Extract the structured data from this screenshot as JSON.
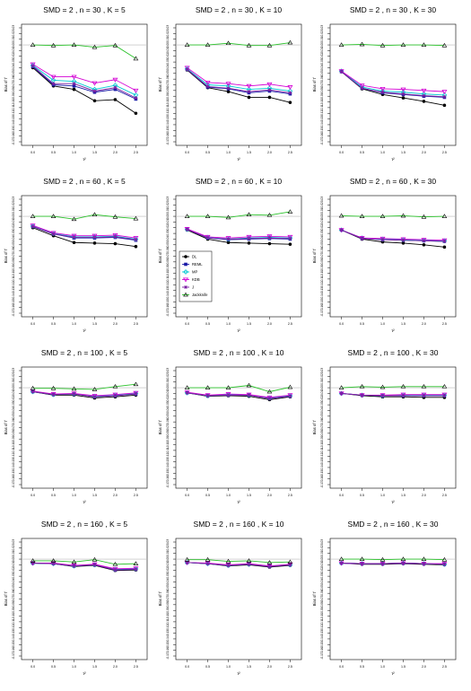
{
  "x_axis_label": "τ²",
  "y_axis_label": "Bias of τ̂",
  "x_ticks": [
    "0.0",
    "0.5",
    "1.0",
    "1.5",
    "2.0",
    "2.5"
  ],
  "y_ticks": [
    "0.03",
    "0.02",
    "0.01",
    "0.00",
    "-0.01",
    "-0.02",
    "-0.03",
    "-0.04",
    "-0.05",
    "-0.06",
    "-0.07",
    "-0.08",
    "-0.09",
    "-0.10",
    "-0.11",
    "-0.12",
    "-0.13",
    "-0.14",
    "-0.15",
    "-0.16",
    "-0.17"
  ],
  "legend": [
    {
      "name": "DL",
      "color": "#000000",
      "marker": "circle"
    },
    {
      "name": "REML",
      "color": "#1a1aa6",
      "marker": "square"
    },
    {
      "name": "MP",
      "color": "#00c8d2",
      "marker": "diamond"
    },
    {
      "name": "KDB",
      "color": "#d400d4",
      "marker": "triangle-down"
    },
    {
      "name": "J",
      "color": "#7a1fa2",
      "marker": "star"
    },
    {
      "name": "Jackknife",
      "color": "#2ac22a",
      "marker": "triangle-up"
    }
  ],
  "chart_data": [
    {
      "type": "line",
      "title": "SMD = 2 , n = 30 , K = 5",
      "x": [
        0,
        0.5,
        1,
        1.5,
        2,
        2.5
      ],
      "ylim": [
        -0.17,
        0.03
      ],
      "series": [
        {
          "name": "DL",
          "values": [
            -0.04,
            -0.072,
            -0.078,
            -0.098,
            -0.096,
            -0.12
          ]
        },
        {
          "name": "REML",
          "values": [
            -0.038,
            -0.07,
            -0.072,
            -0.083,
            -0.078,
            -0.095
          ]
        },
        {
          "name": "MP",
          "values": [
            -0.036,
            -0.062,
            -0.064,
            -0.078,
            -0.071,
            -0.088
          ]
        },
        {
          "name": "KDB",
          "values": [
            -0.034,
            -0.056,
            -0.056,
            -0.067,
            -0.061,
            -0.08
          ]
        },
        {
          "name": "J",
          "values": [
            -0.037,
            -0.068,
            -0.068,
            -0.081,
            -0.075,
            -0.093
          ]
        },
        {
          "name": "Jackknife",
          "values": [
            0.0,
            -0.001,
            0.0,
            -0.004,
            -0.001,
            -0.024
          ]
        }
      ]
    },
    {
      "type": "line",
      "title": "SMD = 2 , n = 30 , K = 10",
      "x": [
        0,
        0.5,
        1,
        1.5,
        2,
        2.5
      ],
      "ylim": [
        -0.17,
        0.03
      ],
      "series": [
        {
          "name": "DL",
          "values": [
            -0.044,
            -0.075,
            -0.082,
            -0.092,
            -0.092,
            -0.101
          ]
        },
        {
          "name": "REML",
          "values": [
            -0.043,
            -0.074,
            -0.077,
            -0.084,
            -0.081,
            -0.086
          ]
        },
        {
          "name": "MP",
          "values": [
            -0.042,
            -0.07,
            -0.072,
            -0.078,
            -0.076,
            -0.081
          ]
        },
        {
          "name": "KDB",
          "values": [
            -0.04,
            -0.066,
            -0.068,
            -0.072,
            -0.069,
            -0.074
          ]
        },
        {
          "name": "J",
          "values": [
            -0.043,
            -0.073,
            -0.076,
            -0.082,
            -0.079,
            -0.084
          ]
        },
        {
          "name": "Jackknife",
          "values": [
            0.0,
            0.0,
            0.003,
            -0.001,
            -0.001,
            0.004
          ]
        }
      ]
    },
    {
      "type": "line",
      "title": "SMD = 2 , n = 30 , K = 30",
      "x": [
        0,
        0.5,
        1,
        1.5,
        2,
        2.5
      ],
      "ylim": [
        -0.17,
        0.03
      ],
      "series": [
        {
          "name": "DL",
          "values": [
            -0.047,
            -0.077,
            -0.087,
            -0.093,
            -0.099,
            -0.106
          ]
        },
        {
          "name": "REML",
          "values": [
            -0.047,
            -0.076,
            -0.084,
            -0.087,
            -0.09,
            -0.092
          ]
        },
        {
          "name": "MP",
          "values": [
            -0.046,
            -0.074,
            -0.081,
            -0.083,
            -0.086,
            -0.088
          ]
        },
        {
          "name": "KDB",
          "values": [
            -0.046,
            -0.071,
            -0.077,
            -0.078,
            -0.08,
            -0.082
          ]
        },
        {
          "name": "J",
          "values": [
            -0.047,
            -0.076,
            -0.083,
            -0.086,
            -0.089,
            -0.091
          ]
        },
        {
          "name": "Jackknife",
          "values": [
            0.0,
            0.001,
            -0.001,
            0.0,
            0.0,
            -0.001
          ]
        }
      ]
    },
    {
      "type": "line",
      "title": "SMD = 2 , n = 60 , K = 5",
      "x": [
        0,
        0.5,
        1,
        1.5,
        2,
        2.5
      ],
      "ylim": [
        -0.17,
        0.03
      ],
      "series": [
        {
          "name": "DL",
          "values": [
            -0.02,
            -0.034,
            -0.046,
            -0.047,
            -0.048,
            -0.053
          ]
        },
        {
          "name": "REML",
          "values": [
            -0.018,
            -0.031,
            -0.038,
            -0.038,
            -0.037,
            -0.042
          ]
        },
        {
          "name": "MP",
          "values": [
            -0.017,
            -0.03,
            -0.036,
            -0.036,
            -0.035,
            -0.04
          ]
        },
        {
          "name": "KDB",
          "values": [
            -0.016,
            -0.029,
            -0.034,
            -0.034,
            -0.033,
            -0.038
          ]
        },
        {
          "name": "J",
          "values": [
            -0.018,
            -0.031,
            -0.037,
            -0.037,
            -0.036,
            -0.041
          ]
        },
        {
          "name": "Jackknife",
          "values": [
            0.0,
            0.0,
            -0.005,
            0.003,
            -0.001,
            -0.004
          ]
        }
      ]
    },
    {
      "type": "line",
      "title": "SMD = 2 , n = 60 , K = 10",
      "x": [
        0,
        0.5,
        1,
        1.5,
        2,
        2.5
      ],
      "ylim": [
        -0.17,
        0.03
      ],
      "series": [
        {
          "name": "DL",
          "values": [
            -0.024,
            -0.04,
            -0.046,
            -0.047,
            -0.048,
            -0.049
          ]
        },
        {
          "name": "REML",
          "values": [
            -0.023,
            -0.038,
            -0.041,
            -0.04,
            -0.039,
            -0.04
          ]
        },
        {
          "name": "MP",
          "values": [
            -0.023,
            -0.037,
            -0.04,
            -0.038,
            -0.037,
            -0.038
          ]
        },
        {
          "name": "KDB",
          "values": [
            -0.022,
            -0.036,
            -0.038,
            -0.036,
            -0.035,
            -0.036
          ]
        },
        {
          "name": "J",
          "values": [
            -0.023,
            -0.038,
            -0.04,
            -0.039,
            -0.038,
            -0.039
          ]
        },
        {
          "name": "Jackknife",
          "values": [
            0.0,
            0.0,
            -0.002,
            0.003,
            0.002,
            0.008
          ]
        }
      ]
    },
    {
      "type": "line",
      "title": "SMD = 2 , n = 60 , K = 30",
      "x": [
        0,
        0.5,
        1,
        1.5,
        2,
        2.5
      ],
      "ylim": [
        -0.17,
        0.03
      ],
      "series": [
        {
          "name": "DL",
          "values": [
            -0.024,
            -0.04,
            -0.045,
            -0.047,
            -0.05,
            -0.054
          ]
        },
        {
          "name": "REML",
          "values": [
            -0.024,
            -0.039,
            -0.041,
            -0.042,
            -0.043,
            -0.044
          ]
        },
        {
          "name": "MP",
          "values": [
            -0.024,
            -0.038,
            -0.04,
            -0.041,
            -0.042,
            -0.043
          ]
        },
        {
          "name": "KDB",
          "values": [
            -0.024,
            -0.038,
            -0.039,
            -0.04,
            -0.041,
            -0.042
          ]
        },
        {
          "name": "J",
          "values": [
            -0.024,
            -0.039,
            -0.041,
            -0.042,
            -0.043,
            -0.044
          ]
        },
        {
          "name": "Jackknife",
          "values": [
            0.001,
            0.0,
            0.0,
            0.001,
            -0.001,
            0.0
          ]
        }
      ]
    },
    {
      "type": "line",
      "title": "SMD = 2 , n = 100 , K = 5",
      "x": [
        0,
        0.5,
        1,
        1.5,
        2,
        2.5
      ],
      "ylim": [
        -0.17,
        0.03
      ],
      "series": [
        {
          "name": "DL",
          "values": [
            -0.007,
            -0.013,
            -0.013,
            -0.018,
            -0.016,
            -0.013
          ]
        },
        {
          "name": "REML",
          "values": [
            -0.007,
            -0.012,
            -0.011,
            -0.016,
            -0.014,
            -0.011
          ]
        },
        {
          "name": "MP",
          "values": [
            -0.007,
            -0.012,
            -0.011,
            -0.015,
            -0.013,
            -0.01
          ]
        },
        {
          "name": "KDB",
          "values": [
            -0.006,
            -0.011,
            -0.01,
            -0.014,
            -0.012,
            -0.009
          ]
        },
        {
          "name": "J",
          "values": [
            -0.007,
            -0.012,
            -0.011,
            -0.016,
            -0.014,
            -0.011
          ]
        },
        {
          "name": "Jackknife",
          "values": [
            -0.001,
            -0.001,
            -0.002,
            -0.003,
            0.002,
            0.006
          ]
        }
      ]
    },
    {
      "type": "line",
      "title": "SMD = 2 , n = 100 , K = 10",
      "x": [
        0,
        0.5,
        1,
        1.5,
        2,
        2.5
      ],
      "ylim": [
        -0.17,
        0.03
      ],
      "series": [
        {
          "name": "DL",
          "values": [
            -0.009,
            -0.015,
            -0.014,
            -0.015,
            -0.021,
            -0.016
          ]
        },
        {
          "name": "REML",
          "values": [
            -0.009,
            -0.014,
            -0.013,
            -0.013,
            -0.019,
            -0.015
          ]
        },
        {
          "name": "MP",
          "values": [
            -0.009,
            -0.014,
            -0.012,
            -0.013,
            -0.018,
            -0.014
          ]
        },
        {
          "name": "KDB",
          "values": [
            -0.008,
            -0.013,
            -0.011,
            -0.012,
            -0.017,
            -0.013
          ]
        },
        {
          "name": "J",
          "values": [
            -0.009,
            -0.014,
            -0.013,
            -0.013,
            -0.019,
            -0.015
          ]
        },
        {
          "name": "Jackknife",
          "values": [
            0.0,
            0.0,
            0.0,
            0.004,
            -0.007,
            0.001
          ]
        }
      ]
    },
    {
      "type": "line",
      "title": "SMD = 2 , n = 100 , K = 30",
      "x": [
        0,
        0.5,
        1,
        1.5,
        2,
        2.5
      ],
      "ylim": [
        -0.17,
        0.03
      ],
      "series": [
        {
          "name": "DL",
          "values": [
            -0.01,
            -0.014,
            -0.016,
            -0.016,
            -0.017,
            -0.017
          ]
        },
        {
          "name": "REML",
          "values": [
            -0.01,
            -0.013,
            -0.014,
            -0.014,
            -0.014,
            -0.014
          ]
        },
        {
          "name": "MP",
          "values": [
            -0.01,
            -0.013,
            -0.014,
            -0.013,
            -0.013,
            -0.013
          ]
        },
        {
          "name": "KDB",
          "values": [
            -0.01,
            -0.013,
            -0.013,
            -0.012,
            -0.012,
            -0.012
          ]
        },
        {
          "name": "J",
          "values": [
            -0.01,
            -0.013,
            -0.014,
            -0.014,
            -0.014,
            -0.014
          ]
        },
        {
          "name": "Jackknife",
          "values": [
            0.0,
            0.002,
            0.001,
            0.002,
            0.002,
            0.002
          ]
        }
      ]
    },
    {
      "type": "line",
      "title": "SMD = 2 , n = 160 , K = 5",
      "x": [
        0,
        0.5,
        1,
        1.5,
        2,
        2.5
      ],
      "ylim": [
        -0.17,
        0.03
      ],
      "series": [
        {
          "name": "DL",
          "values": [
            -0.007,
            -0.008,
            -0.013,
            -0.011,
            -0.02,
            -0.019
          ]
        },
        {
          "name": "REML",
          "values": [
            -0.007,
            -0.008,
            -0.012,
            -0.01,
            -0.019,
            -0.018
          ]
        },
        {
          "name": "MP",
          "values": [
            -0.007,
            -0.008,
            -0.012,
            -0.01,
            -0.018,
            -0.017
          ]
        },
        {
          "name": "KDB",
          "values": [
            -0.007,
            -0.007,
            -0.011,
            -0.009,
            -0.017,
            -0.016
          ]
        },
        {
          "name": "J",
          "values": [
            -0.007,
            -0.008,
            -0.012,
            -0.01,
            -0.019,
            -0.018
          ]
        },
        {
          "name": "Jackknife",
          "values": [
            -0.003,
            -0.003,
            -0.005,
            -0.001,
            -0.009,
            -0.008
          ]
        }
      ]
    },
    {
      "type": "line",
      "title": "SMD = 2 , n = 160 , K = 10",
      "x": [
        0,
        0.5,
        1,
        1.5,
        2,
        2.5
      ],
      "ylim": [
        -0.17,
        0.03
      ],
      "series": [
        {
          "name": "DL",
          "values": [
            -0.006,
            -0.008,
            -0.012,
            -0.01,
            -0.014,
            -0.011
          ]
        },
        {
          "name": "REML",
          "values": [
            -0.006,
            -0.008,
            -0.011,
            -0.009,
            -0.013,
            -0.01
          ]
        },
        {
          "name": "MP",
          "values": [
            -0.006,
            -0.008,
            -0.011,
            -0.009,
            -0.012,
            -0.01
          ]
        },
        {
          "name": "KDB",
          "values": [
            -0.006,
            -0.007,
            -0.01,
            -0.008,
            -0.012,
            -0.009
          ]
        },
        {
          "name": "J",
          "values": [
            -0.006,
            -0.008,
            -0.011,
            -0.009,
            -0.013,
            -0.01
          ]
        },
        {
          "name": "Jackknife",
          "values": [
            -0.001,
            -0.001,
            -0.004,
            -0.003,
            -0.006,
            -0.005
          ]
        }
      ]
    },
    {
      "type": "line",
      "title": "SMD = 2 , n = 160 , K = 30",
      "x": [
        0,
        0.5,
        1,
        1.5,
        2,
        2.5
      ],
      "ylim": [
        -0.17,
        0.03
      ],
      "series": [
        {
          "name": "DL",
          "values": [
            -0.007,
            -0.009,
            -0.009,
            -0.008,
            -0.009,
            -0.01
          ]
        },
        {
          "name": "REML",
          "values": [
            -0.007,
            -0.008,
            -0.008,
            -0.007,
            -0.008,
            -0.009
          ]
        },
        {
          "name": "MP",
          "values": [
            -0.007,
            -0.008,
            -0.008,
            -0.007,
            -0.008,
            -0.009
          ]
        },
        {
          "name": "KDB",
          "values": [
            -0.007,
            -0.008,
            -0.008,
            -0.007,
            -0.008,
            -0.008
          ]
        },
        {
          "name": "J",
          "values": [
            -0.007,
            -0.008,
            -0.008,
            -0.007,
            -0.008,
            -0.009
          ]
        },
        {
          "name": "Jackknife",
          "values": [
            0.0,
            0.0,
            -0.001,
            0.0,
            0.0,
            -0.001
          ]
        }
      ]
    }
  ]
}
